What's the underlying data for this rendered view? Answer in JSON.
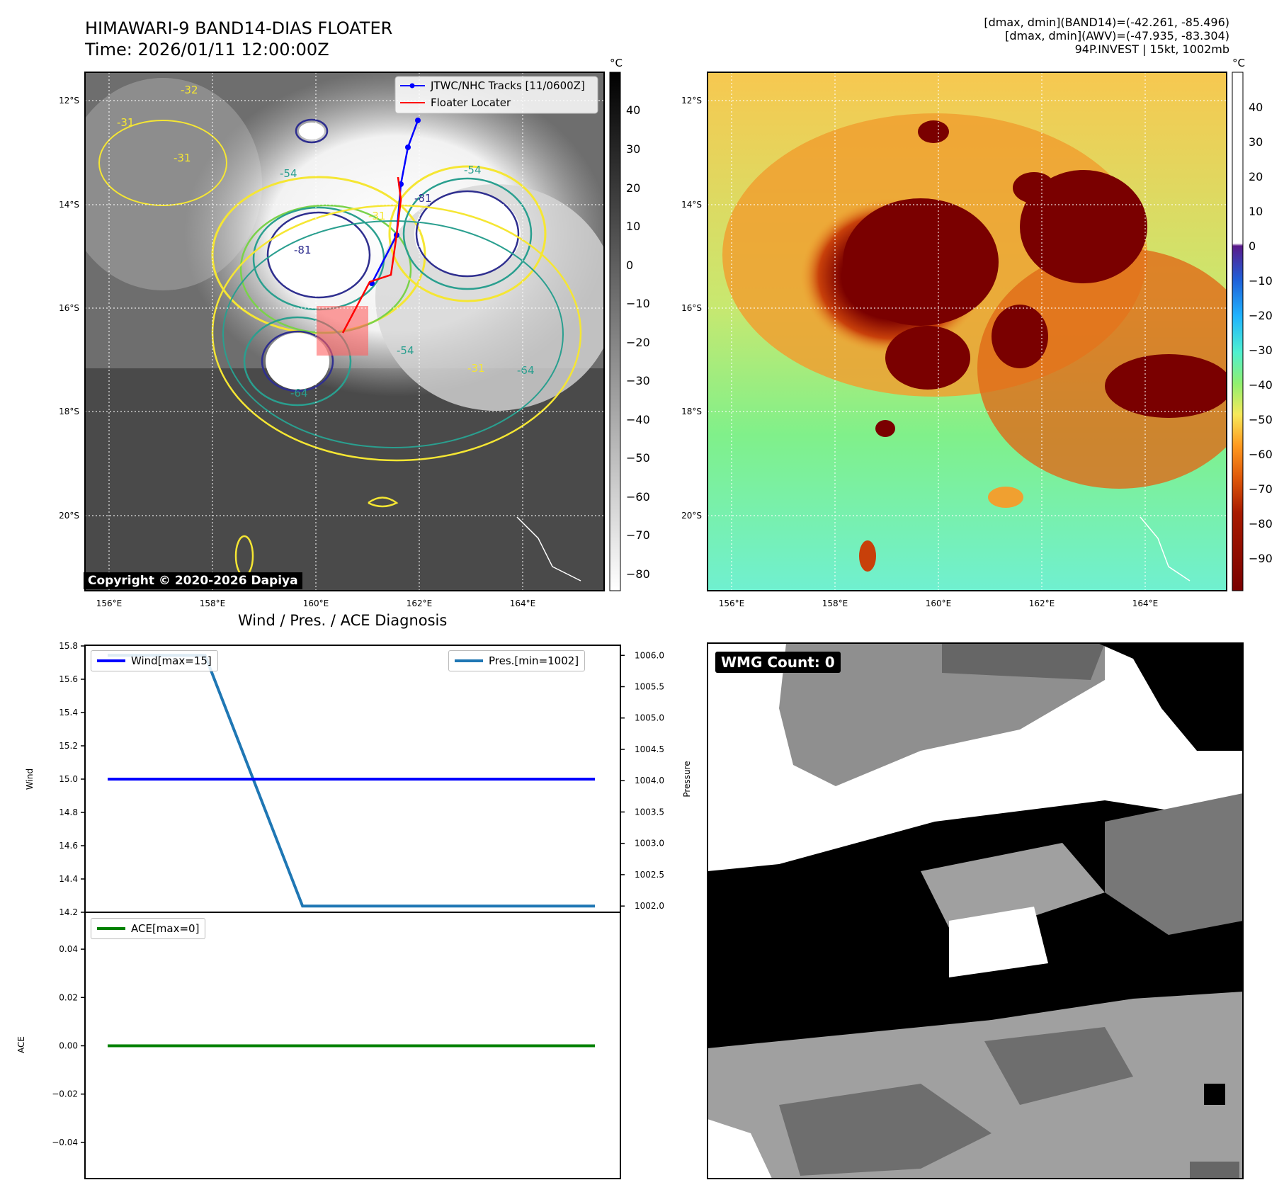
{
  "header": {
    "title_line1": "HIMAWARI-9 BAND14-DIAS FLOATER",
    "title_line2": "Time: 2026/01/11 12:00:00Z",
    "stats_line1": "[dmax, dmin](BAND14)=(-42.261, -85.496)",
    "stats_line2": "[dmax, dmin](AWV)=(-47.935, -83.304)",
    "stats_line3": "94P.INVEST | 15kt, 1002mb"
  },
  "map": {
    "lon_ticks": [
      "156°E",
      "158°E",
      "160°E",
      "162°E",
      "164°E"
    ],
    "lat_ticks": [
      "12°S",
      "14°S",
      "16°S",
      "18°S",
      "20°S"
    ],
    "contour_labels": [
      "-31",
      "-31",
      "-31",
      "-31",
      "-54",
      "-54",
      "-54",
      "-64",
      "-64",
      "-81",
      "-81",
      "-32"
    ],
    "legend_tracks": "JTWC/NHC Tracks [11/0600Z]",
    "legend_floater": "Floater Locater",
    "copyright": "Copyright © 2020-2026 Dapiya",
    "track_color": "#0000ff",
    "floater_color": "#ff0000"
  },
  "colorbar_band14": {
    "unit": "°C",
    "ticks": [
      "40",
      "30",
      "20",
      "10",
      "0",
      "−10",
      "−20",
      "−30",
      "−40",
      "−50",
      "−60",
      "−70",
      "−80"
    ]
  },
  "colorbar_awv": {
    "unit": "°C",
    "ticks": [
      "40",
      "30",
      "20",
      "10",
      "0",
      "−10",
      "−20",
      "−30",
      "−40",
      "−50",
      "−60",
      "−70",
      "−80",
      "−90"
    ]
  },
  "diagnosis": {
    "title": "Wind / Pres. / ACE Diagnosis",
    "wind_ylabel": "Wind",
    "pressure_ylabel": "Pressure",
    "ace_ylabel": "ACE",
    "wind_legend": "Wind[max=15]",
    "pres_legend": "Pres.[min=1002]",
    "ace_legend": "ACE[max=0]",
    "wind_ticks": [
      "15.8",
      "15.6",
      "15.4",
      "15.2",
      "15.0",
      "14.8",
      "14.6",
      "14.4",
      "14.2"
    ],
    "pres_ticks": [
      "1006.0",
      "1005.5",
      "1005.0",
      "1004.5",
      "1004.0",
      "1003.5",
      "1003.0",
      "1002.5",
      "1002.0"
    ],
    "ace_ticks": [
      "0.04",
      "0.02",
      "0.00",
      "−0.02",
      "−0.04"
    ],
    "wind_color": "#0000ff",
    "pres_color": "#1f77b4",
    "ace_color": "#008000"
  },
  "wmg": {
    "label": "WMG Count: 0"
  },
  "chart_data": [
    {
      "type": "line",
      "title": "Wind / Pres. / ACE Diagnosis",
      "ylabel": "Wind",
      "ylim": [
        14.2,
        15.8
      ],
      "series": [
        {
          "name": "Wind[max=15]",
          "x": [
            0,
            1,
            2,
            3,
            4,
            5
          ],
          "values": [
            15,
            15,
            15,
            15,
            15,
            15
          ]
        }
      ]
    },
    {
      "type": "line",
      "ylabel": "Pressure",
      "ylim": [
        1001.9,
        1006.15
      ],
      "series": [
        {
          "name": "Pres.[min=1002]",
          "x": [
            0,
            1,
            2,
            3,
            4,
            5
          ],
          "values": [
            1006,
            1006,
            1002,
            1002,
            1002,
            1002
          ]
        }
      ]
    },
    {
      "type": "line",
      "ylabel": "ACE",
      "ylim": [
        -0.055,
        0.055
      ],
      "series": [
        {
          "name": "ACE[max=0]",
          "x": [
            0,
            1,
            2,
            3,
            4,
            5
          ],
          "values": [
            0,
            0,
            0,
            0,
            0,
            0
          ]
        }
      ]
    }
  ]
}
